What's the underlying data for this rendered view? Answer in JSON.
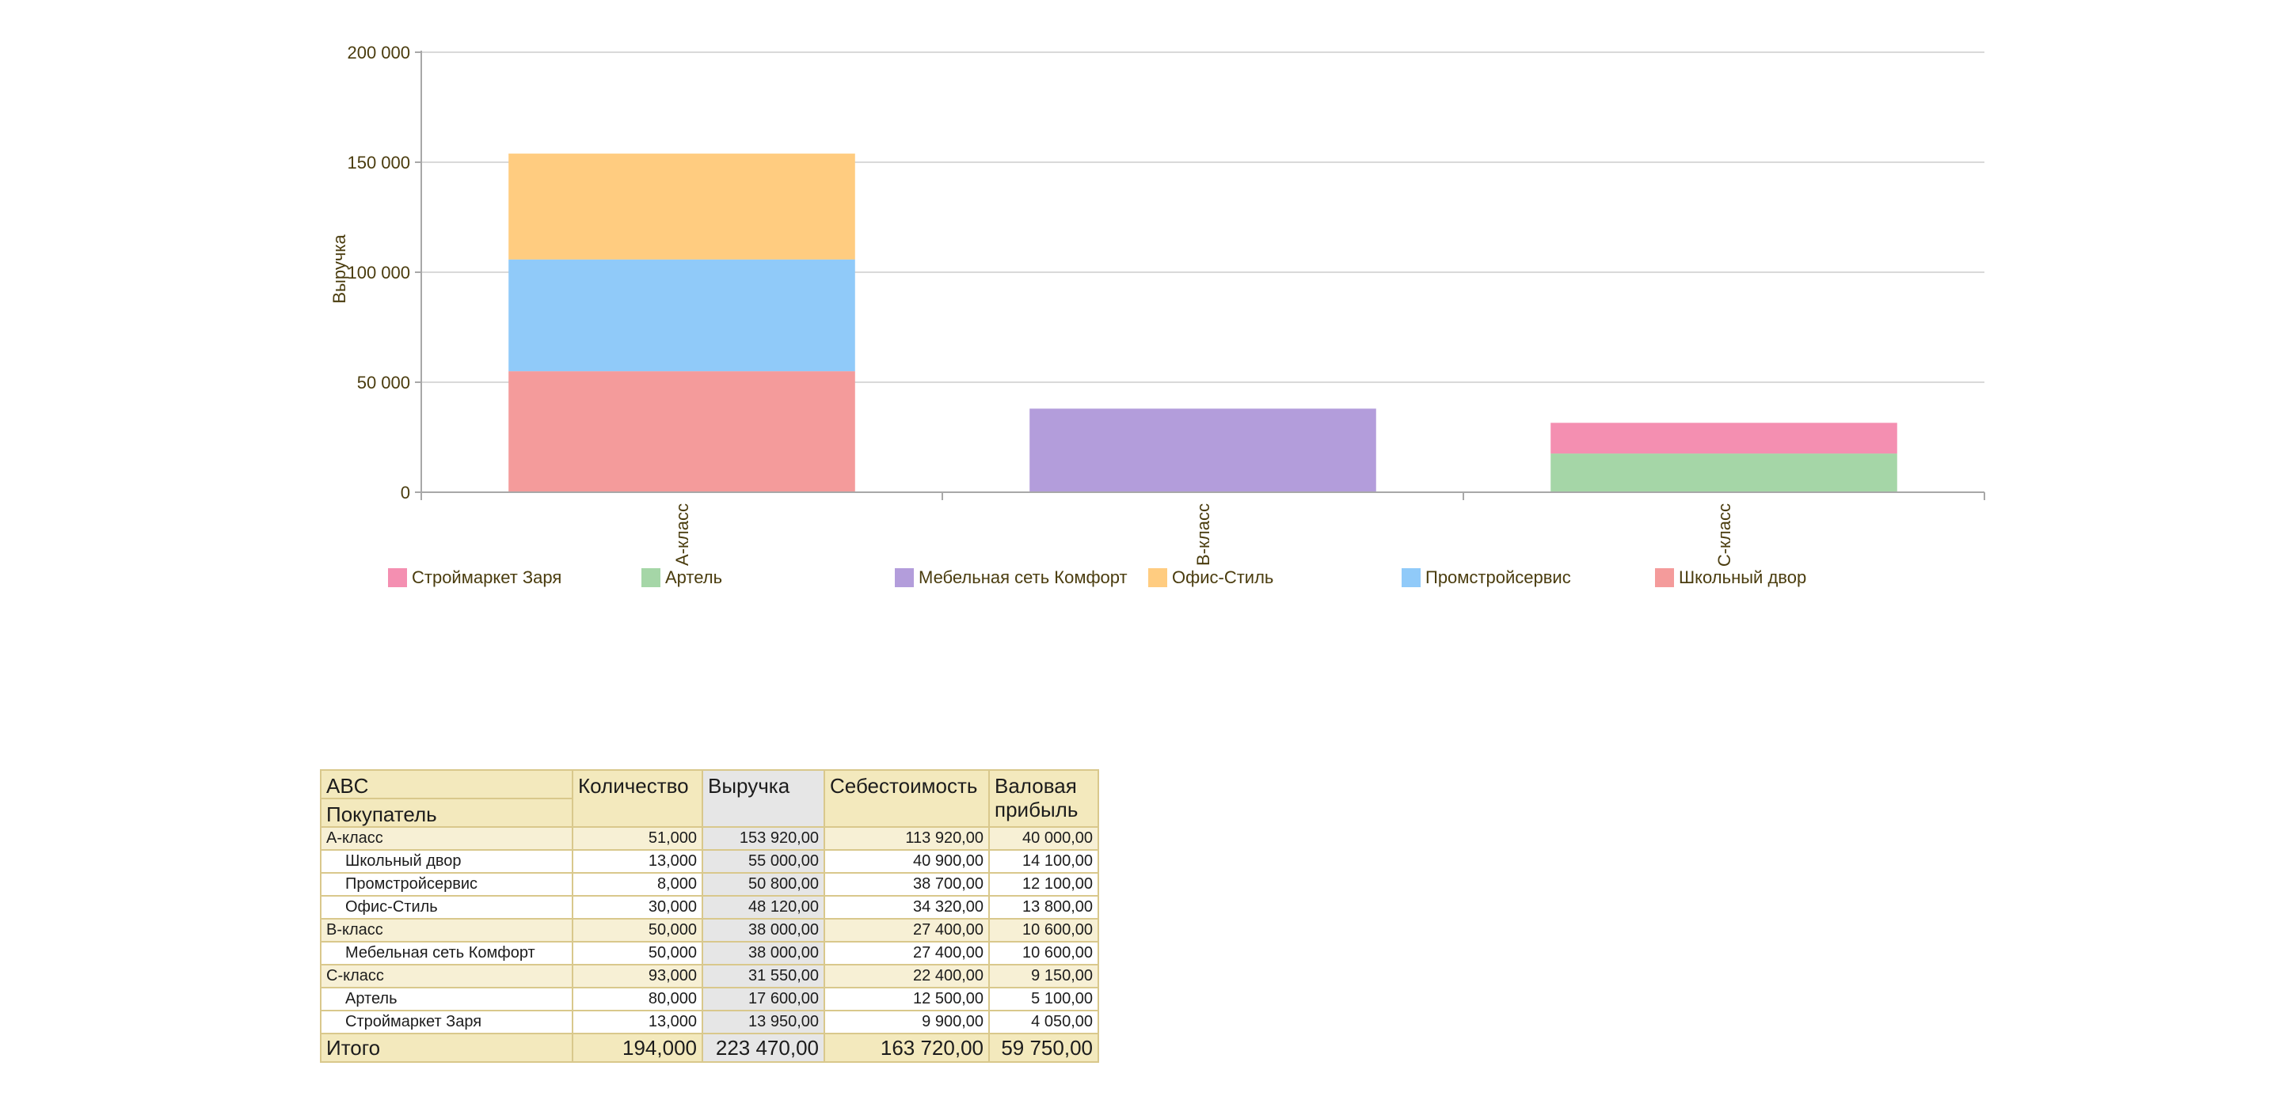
{
  "chart_data": {
    "type": "bar",
    "stacked": true,
    "categories": [
      "А-класс",
      "В-класс",
      "С-класс"
    ],
    "ylabel": "Выручка",
    "xlabel": "",
    "ylim": [
      0,
      200000
    ],
    "yticks": [
      0,
      50000,
      100000,
      150000,
      200000
    ],
    "ytick_labels": [
      "0",
      "50 000",
      "100 000",
      "150 000",
      "200 000"
    ],
    "grid": true,
    "legend_position": "bottom",
    "series": [
      {
        "name": "Строймаркет Заря",
        "color": "#f48fb1",
        "values": [
          0,
          0,
          13950
        ]
      },
      {
        "name": "Артель",
        "color": "#a5d6a7",
        "values": [
          0,
          0,
          17600
        ]
      },
      {
        "name": "Мебельная сеть Комфорт",
        "color": "#b39ddb",
        "values": [
          0,
          38000,
          0
        ]
      },
      {
        "name": "Офис-Стиль",
        "color": "#ffcc80",
        "values": [
          48120,
          0,
          0
        ]
      },
      {
        "name": "Промстройсервис",
        "color": "#90caf9",
        "values": [
          50800,
          0,
          0
        ]
      },
      {
        "name": "Школьный двор",
        "color": "#f49b9b",
        "values": [
          55000,
          0,
          0
        ]
      }
    ],
    "stack_order": [
      "Школьный двор",
      "Промстройсервис",
      "Офис-Стиль",
      "Мебельная сеть Комфорт",
      "Артель",
      "Строймаркет Заря"
    ]
  },
  "table": {
    "header": {
      "abc": "ABC",
      "buyer": "Покупатель",
      "qty": "Количество",
      "revenue": "Выручка",
      "cost": "Себестоимость",
      "profit_line1": "Валовая",
      "profit_line2": "прибыль"
    },
    "rows": [
      {
        "kind": "group",
        "name": "А-класс",
        "qty": "51,000",
        "revenue": "153 920,00",
        "cost": "113 920,00",
        "profit": "40 000,00"
      },
      {
        "kind": "detail",
        "name": "Школьный двор",
        "qty": "13,000",
        "revenue": "55 000,00",
        "cost": "40 900,00",
        "profit": "14 100,00"
      },
      {
        "kind": "detail",
        "name": "Промстройсервис",
        "qty": "8,000",
        "revenue": "50 800,00",
        "cost": "38 700,00",
        "profit": "12 100,00"
      },
      {
        "kind": "detail",
        "name": "Офис-Стиль",
        "qty": "30,000",
        "revenue": "48 120,00",
        "cost": "34 320,00",
        "profit": "13 800,00"
      },
      {
        "kind": "group",
        "name": "В-класс",
        "qty": "50,000",
        "revenue": "38 000,00",
        "cost": "27 400,00",
        "profit": "10 600,00"
      },
      {
        "kind": "detail",
        "name": "Мебельная сеть Комфорт",
        "qty": "50,000",
        "revenue": "38 000,00",
        "cost": "27 400,00",
        "profit": "10 600,00"
      },
      {
        "kind": "group",
        "name": "С-класс",
        "qty": "93,000",
        "revenue": "31 550,00",
        "cost": "22 400,00",
        "profit": "9 150,00"
      },
      {
        "kind": "detail",
        "name": "Артель",
        "qty": "80,000",
        "revenue": "17 600,00",
        "cost": "12 500,00",
        "profit": "5 100,00"
      },
      {
        "kind": "detail",
        "name": "Строймаркет Заря",
        "qty": "13,000",
        "revenue": "13 950,00",
        "cost": "9 900,00",
        "profit": "4 050,00"
      }
    ],
    "total": {
      "name": "Итого",
      "qty": "194,000",
      "revenue": "223 470,00",
      "cost": "163 720,00",
      "profit": "59 750,00"
    }
  }
}
